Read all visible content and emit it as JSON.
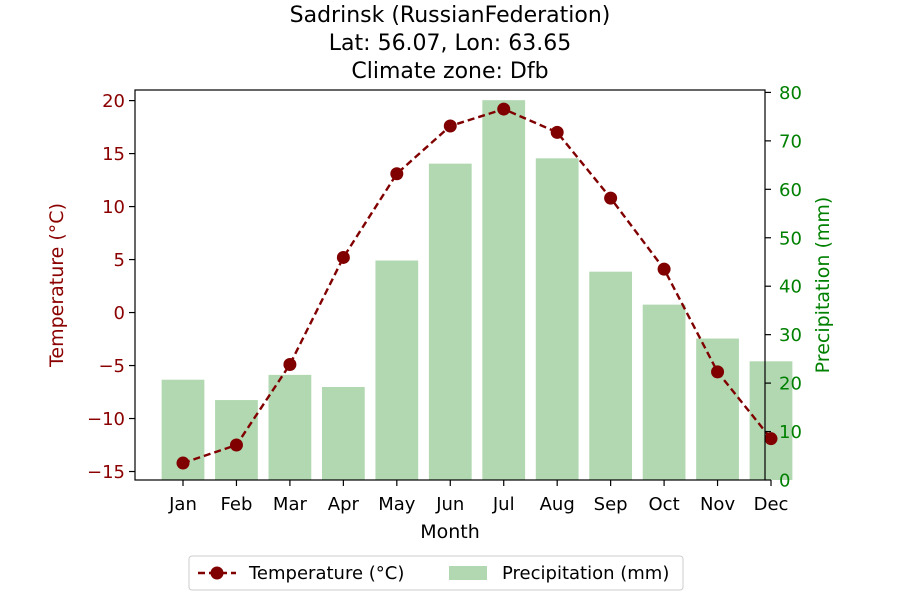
{
  "chart_data": {
    "type": "bar+line",
    "title_lines": [
      "Sadrinsk (RussianFederation)",
      "Lat: 56.07, Lon: 63.65",
      "Climate zone: Dfb"
    ],
    "xlabel": "Month",
    "categories": [
      "Jan",
      "Feb",
      "Mar",
      "Apr",
      "May",
      "Jun",
      "Jul",
      "Aug",
      "Sep",
      "Oct",
      "Nov",
      "Dec"
    ],
    "left_axis": {
      "label": "Temperature (°C)",
      "ylim": [
        -15.8,
        21.0
      ],
      "ticks": [
        -15,
        -10,
        -5,
        0,
        5,
        10,
        15,
        20
      ],
      "tick_labels": [
        "−15",
        "−10",
        "−5",
        "0",
        "5",
        "10",
        "15",
        "20"
      ],
      "color": "#8b0000"
    },
    "right_axis": {
      "label": "Precipitation (mm)",
      "ylim": [
        0,
        80.5
      ],
      "ticks": [
        0,
        10,
        20,
        30,
        40,
        50,
        60,
        70,
        80
      ],
      "tick_labels": [
        "0",
        "10",
        "20",
        "30",
        "40",
        "50",
        "60",
        "70",
        "80"
      ],
      "color": "#008000"
    },
    "series": [
      {
        "name": "Temperature (°C)",
        "type": "line",
        "axis": "left",
        "color": "#800000",
        "values": [
          -14.2,
          -12.5,
          -4.9,
          5.2,
          13.1,
          17.6,
          19.2,
          17.0,
          10.8,
          4.1,
          -5.6,
          -11.9
        ]
      },
      {
        "name": "Precipitation (mm)",
        "type": "bar",
        "axis": "right",
        "color": "#b2d8b2",
        "values": [
          20.7,
          16.5,
          21.7,
          19.2,
          45.3,
          65.3,
          78.4,
          66.4,
          43.0,
          36.2,
          29.2,
          24.5
        ]
      }
    ],
    "legend": {
      "placement": "bottom-center",
      "entries": [
        "Temperature (°C)",
        "Precipitation (mm)"
      ]
    },
    "grid": false
  }
}
